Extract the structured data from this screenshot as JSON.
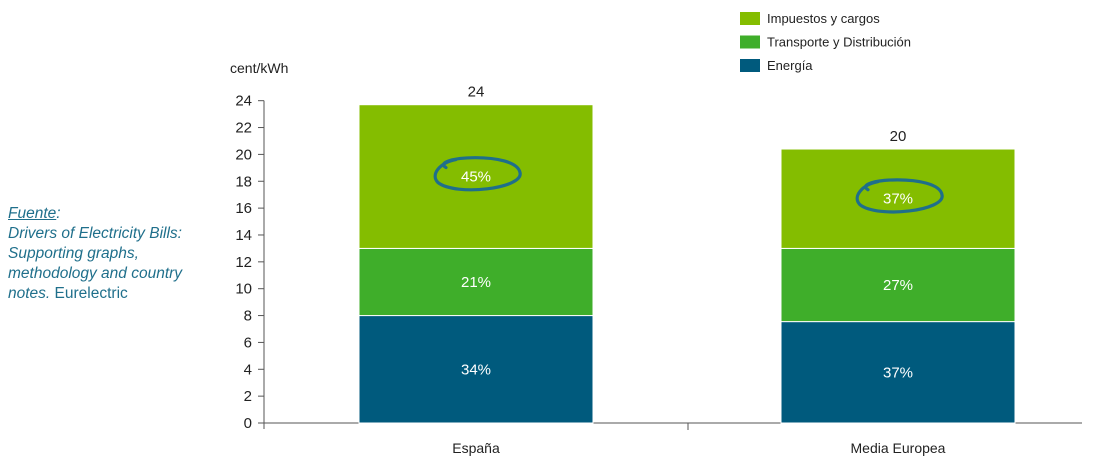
{
  "source": {
    "prefix": "Fuente",
    "colon": ":",
    "title_lines": [
      "Drivers of Electricity Bills:",
      "Supporting graphs,",
      "methodology and country",
      "notes"
    ],
    "period": ".",
    "publisher": "Eurelectric"
  },
  "chart_data": {
    "type": "bar",
    "stacked": true,
    "ylabel": "cent/kWh",
    "ylim": [
      0,
      24
    ],
    "yticks": [
      0,
      2,
      4,
      6,
      8,
      10,
      12,
      14,
      16,
      18,
      20,
      22,
      24
    ],
    "categories": [
      "España",
      "Media Europea"
    ],
    "totals": [
      "24",
      "20"
    ],
    "series": [
      {
        "name": "Energía",
        "color": "#005a7d",
        "values": [
          8.0,
          7.55
        ],
        "labels": [
          "34%",
          "37%"
        ]
      },
      {
        "name": "Transporte y Distribución",
        "color": "#3fae2a",
        "values": [
          5.0,
          5.45
        ],
        "labels": [
          "21%",
          "27%"
        ]
      },
      {
        "name": "Impuestos y cargos",
        "color": "#84bd00",
        "values": [
          10.7,
          7.4
        ],
        "labels": [
          "45%",
          "37%"
        ]
      }
    ],
    "legend": {
      "placement": "top-right",
      "order": [
        "Impuestos y cargos",
        "Transporte y Distribución",
        "Energía"
      ]
    },
    "highlight": {
      "series": "Impuestos y cargos",
      "circle_color": "#1f6f8b"
    },
    "grid": false
  }
}
